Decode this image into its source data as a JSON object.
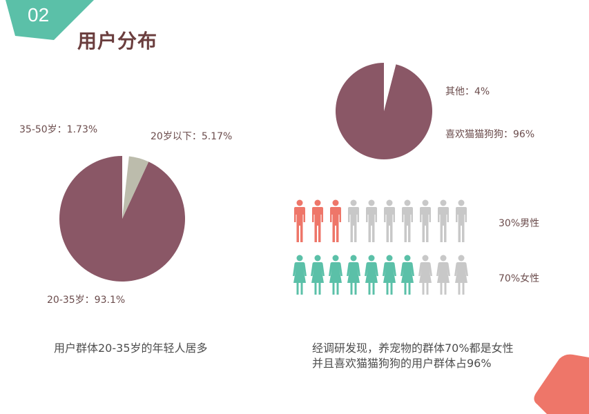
{
  "slide": {
    "number": "02",
    "title": "用户分布",
    "colors": {
      "teal": "#5bc0a8",
      "coral": "#ee7669",
      "plum": "#8a5766",
      "gray": "#c8c8c8",
      "sage": "#bcbcac"
    }
  },
  "age": {
    "label_35_50": "35-50岁：1.73%",
    "label_under20": "20岁以下：5.17%",
    "label_20_35": "20-35岁：93.1%",
    "caption": "用户群体20-35岁的年轻人居多"
  },
  "pet": {
    "label_other": "其他：4%",
    "label_pets": "喜欢猫猫狗狗：96%"
  },
  "gender": {
    "male_label": "30%男性",
    "female_label": "70%女性",
    "male_fraction": 0.3,
    "female_fraction": 0.7
  },
  "caption_right": {
    "line1": "经调研发现，养宠物的群体70%都是女性",
    "line2": "并且喜欢猫猫狗狗的用户群体占96%"
  },
  "chart_data": [
    {
      "type": "pie",
      "categories": [
        "20-35岁",
        "35-50岁",
        "20岁以下"
      ],
      "values": [
        93.1,
        1.73,
        5.17
      ],
      "colors": [
        "#8a5766",
        "#ffffff",
        "#bcbcac"
      ]
    },
    {
      "type": "pie",
      "categories": [
        "喜欢猫猫狗狗",
        "其他"
      ],
      "values": [
        96,
        4
      ],
      "colors": [
        "#8a5766",
        "#ffffff"
      ]
    }
  ]
}
